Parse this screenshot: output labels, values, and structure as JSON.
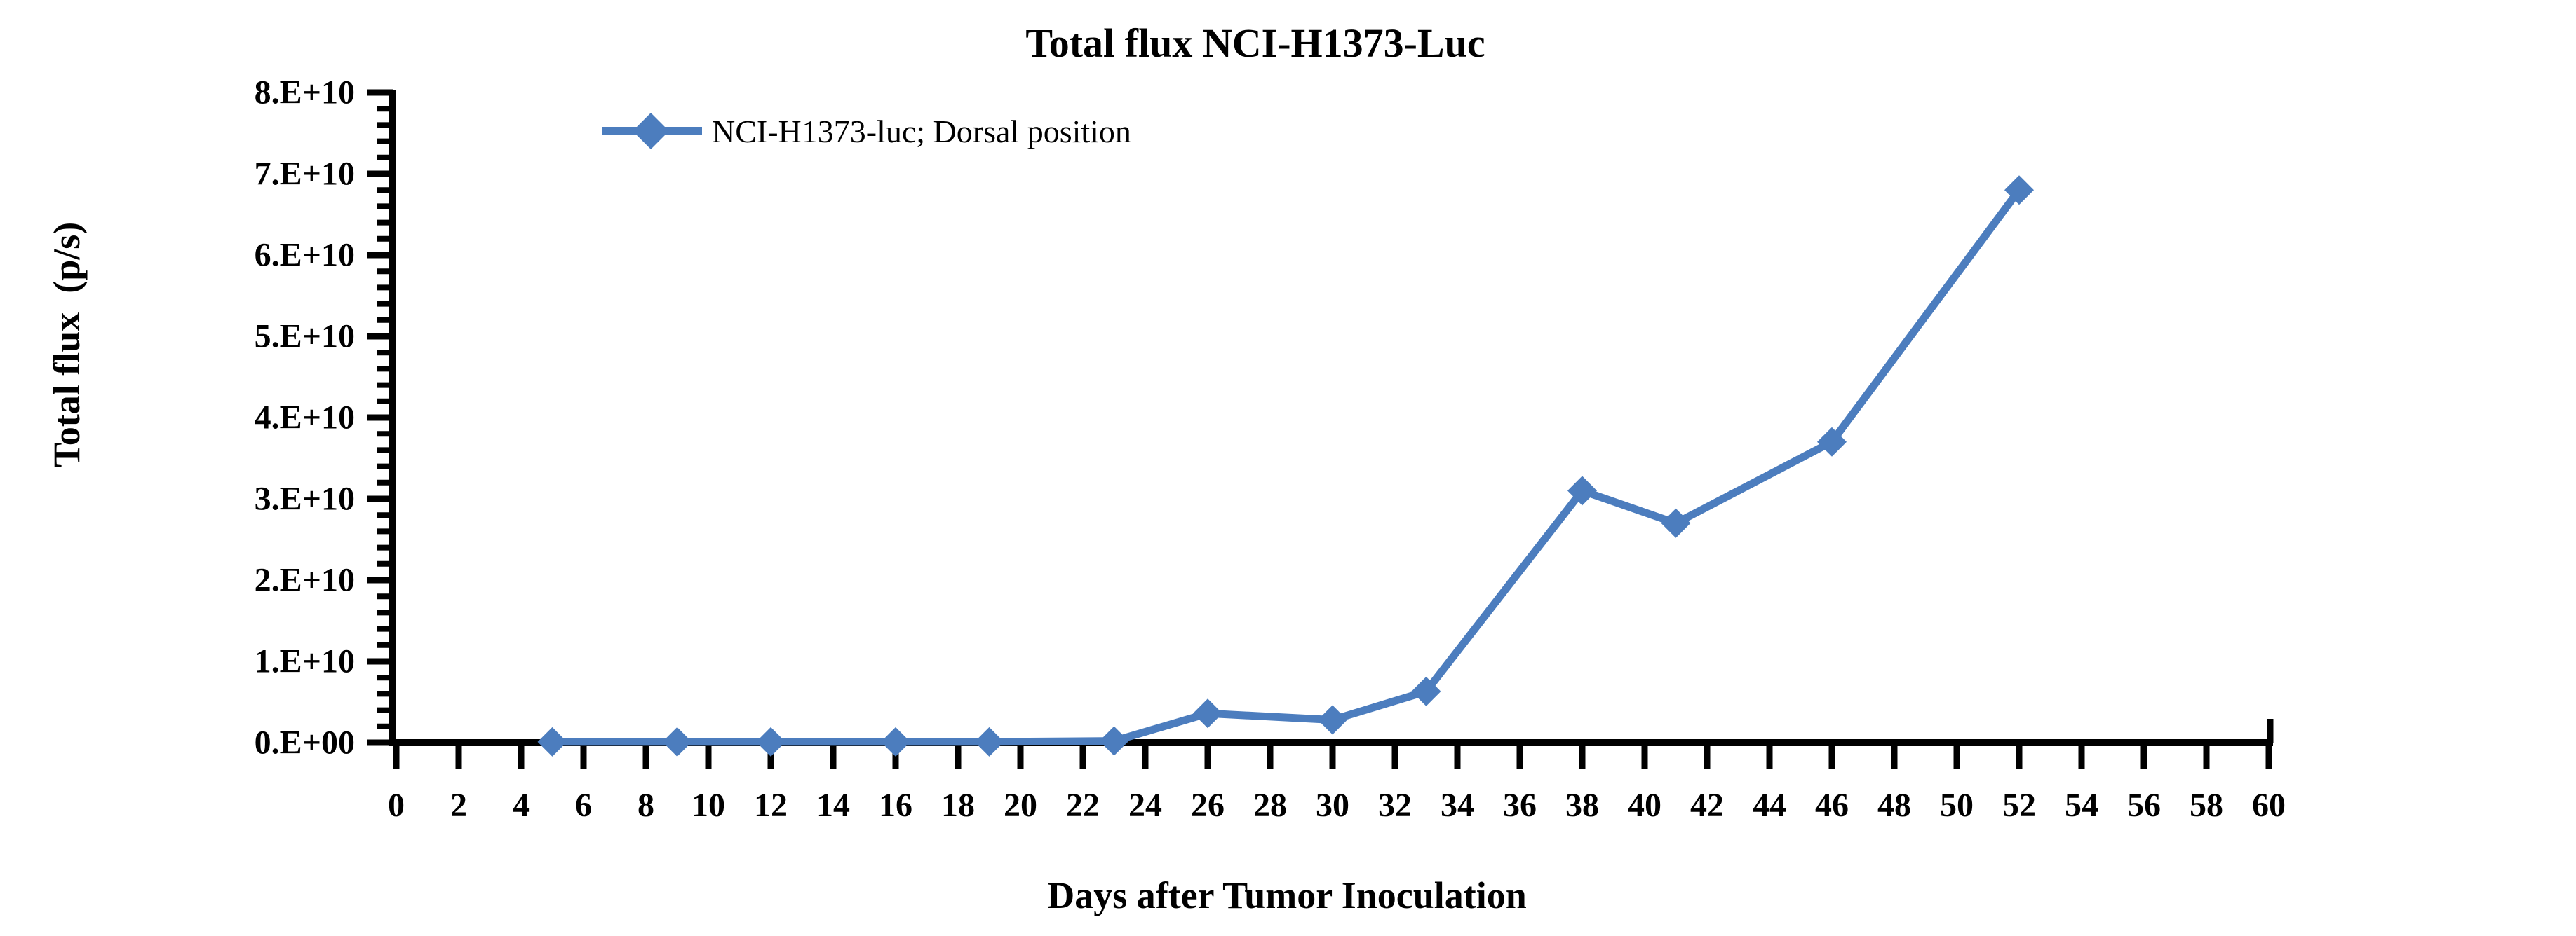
{
  "page": {
    "background": "#ffffff",
    "text_color": "#000000"
  },
  "chart_data": {
    "type": "line",
    "title": "Total flux NCI-H1373-Luc",
    "xlabel": "Days after Tumor Inoculation",
    "ylabel": "Total flux  (p/s)",
    "grid": "off",
    "legend_position": "top-left-inside",
    "axis_color": "#000000",
    "series": [
      {
        "name": "NCI-H1373-luc; Dorsal position",
        "color": "#4C7DBE",
        "marker": "diamond",
        "x": [
          5,
          9,
          12,
          16,
          19,
          23,
          26,
          30,
          33,
          38,
          41,
          46,
          52
        ],
        "y": [
          100000000.0,
          100000000.0,
          100000000.0,
          100000000.0,
          100000000.0,
          200000000.0,
          3600000000.0,
          2800000000.0,
          6300000000.0,
          31000000000.0,
          27000000000.0,
          37000000000.0,
          68000000000.0
        ]
      }
    ],
    "x_axis": {
      "min": 0,
      "max": 60,
      "tick_values": [
        0,
        2,
        4,
        6,
        8,
        10,
        12,
        14,
        16,
        18,
        20,
        22,
        24,
        26,
        28,
        30,
        32,
        34,
        36,
        38,
        40,
        42,
        44,
        46,
        48,
        50,
        52,
        54,
        56,
        58,
        60
      ],
      "tick_labels": [
        "0",
        "2",
        "4",
        "6",
        "8",
        "10",
        "12",
        "14",
        "16",
        "18",
        "20",
        "22",
        "24",
        "26",
        "28",
        "30",
        "32",
        "34",
        "36",
        "38",
        "40",
        "42",
        "44",
        "46",
        "48",
        "50",
        "52",
        "54",
        "56",
        "58",
        "60"
      ]
    },
    "y_axis": {
      "min": 0,
      "max": 80000000000.0,
      "tick_values": [
        0,
        10000000000.0,
        20000000000.0,
        30000000000.0,
        40000000000.0,
        50000000000.0,
        60000000000.0,
        70000000000.0,
        80000000000.0
      ],
      "tick_labels": [
        "0.E+00",
        "1.E+10",
        "2.E+10",
        "3.E+10",
        "4.E+10",
        "5.E+10",
        "6.E+10",
        "7.E+10",
        "8.E+10"
      ],
      "minor_tick_step": 2000000000.0,
      "minor_ticks_per_interval": 4
    }
  }
}
